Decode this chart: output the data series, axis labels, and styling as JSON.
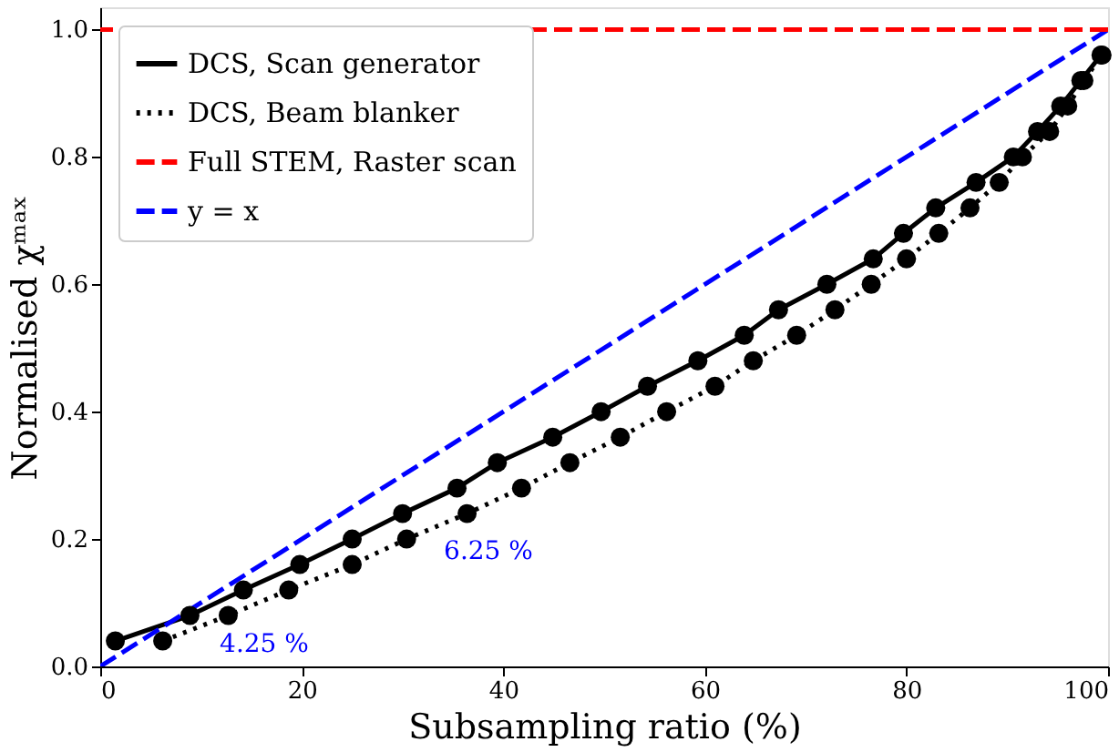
{
  "chart_data": {
    "type": "line",
    "xlabel": "Subsampling ratio (%)",
    "ylabel": "Normalised χᵐᵃˣ",
    "xlim": [
      0,
      100
    ],
    "xticks": [
      0,
      20,
      40,
      60,
      80,
      100
    ],
    "ylim": [
      0,
      1.035
    ],
    "yticks": [
      {
        "value": 0,
        "label": "0.0"
      },
      0.2,
      0.4,
      0.6,
      0.8,
      {
        "value": 1,
        "label": "1.0"
      }
    ],
    "grid": false,
    "legend": "top left",
    "series": [
      {
        "name": "DCS, Scan generator",
        "color": "#000000",
        "line_style": "solid",
        "marker": "circle",
        "x": [
          1.5,
          8.9,
          14.2,
          19.8,
          25.0,
          30.0,
          35.4,
          39.4,
          44.9,
          49.7,
          54.3,
          59.3,
          63.9,
          67.3,
          72.1,
          76.7,
          79.7,
          82.9,
          86.9,
          90.6,
          93.0,
          95.3,
          97.3,
          99.3
        ],
        "values": [
          0.04,
          0.08,
          0.12,
          0.16,
          0.2,
          0.24,
          0.28,
          0.32,
          0.36,
          0.4,
          0.44,
          0.48,
          0.52,
          0.56,
          0.6,
          0.64,
          0.68,
          0.72,
          0.76,
          0.8,
          0.84,
          0.88,
          0.92,
          0.96
        ]
      },
      {
        "name": "DCS, Beam blanker",
        "color": "#000000",
        "line_style": "dotted",
        "marker": "circle",
        "x": [
          6.2,
          12.7,
          18.7,
          25.0,
          30.4,
          36.4,
          41.8,
          46.6,
          51.6,
          56.2,
          61.0,
          64.8,
          69.1,
          72.9,
          76.5,
          80.0,
          83.2,
          86.3,
          89.2,
          91.5,
          94.2,
          96.0,
          97.6,
          99.4
        ],
        "values": [
          0.04,
          0.08,
          0.12,
          0.16,
          0.2,
          0.24,
          0.28,
          0.32,
          0.36,
          0.4,
          0.44,
          0.48,
          0.52,
          0.56,
          0.6,
          0.64,
          0.68,
          0.72,
          0.76,
          0.8,
          0.84,
          0.88,
          0.92,
          0.96
        ]
      },
      {
        "name": "y = x",
        "color": "#0000ff",
        "line_style": "dashed",
        "marker": "none",
        "x": [
          0,
          100
        ],
        "values": [
          0,
          1
        ]
      }
    ],
    "ref_lines": [
      {
        "axis": "y",
        "value": 1,
        "label": "Full STEM, Raster scan",
        "color": "#ff0000",
        "line_style": "dashed"
      }
    ],
    "annotations": [
      "4.25 %",
      "6.25 %"
    ]
  }
}
